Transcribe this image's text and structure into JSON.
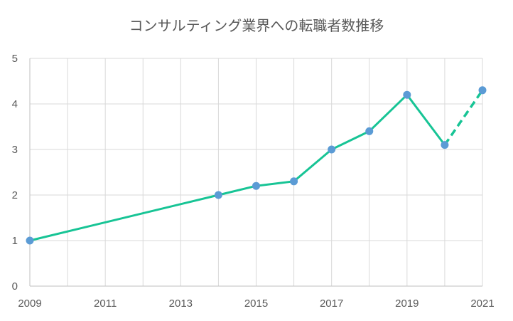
{
  "chart_data": {
    "type": "line",
    "title": "コンサルティング業界への転職者数推移",
    "xlabel": "",
    "ylabel": "",
    "xlim": [
      2009,
      2021
    ],
    "ylim": [
      0,
      5
    ],
    "x_ticks": [
      "2009",
      "2011",
      "2013",
      "2015",
      "2017",
      "2019",
      "2021"
    ],
    "y_ticks": [
      "0",
      "1",
      "2",
      "3",
      "4",
      "5"
    ],
    "grid": true,
    "legend": "none",
    "series": [
      {
        "x": [
          2009,
          2014,
          2015,
          2016,
          2017,
          2018,
          2019,
          2020,
          2021
        ],
        "y": [
          1.0,
          2.0,
          2.2,
          2.3,
          3.0,
          3.4,
          4.2,
          3.1,
          4.3
        ],
        "dashed_from_x": 2020,
        "line_color": "#17c495",
        "marker_color": "#5b9bd5"
      }
    ]
  }
}
